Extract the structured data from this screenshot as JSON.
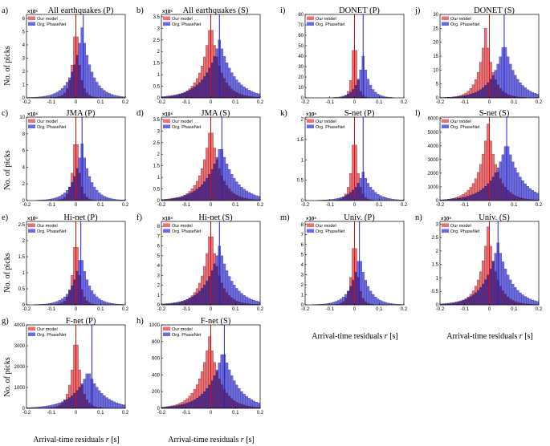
{
  "chart_data": {
    "type": "bar",
    "figure_ylabel": "No. of picks",
    "figure_xlabel": {
      "text": "Arrival-time residuals ",
      "var": "r",
      "unit": " [s]"
    },
    "colors": {
      "our_model": "#f26d6d",
      "org_phasenet": "#6b6be8",
      "overlap": "#5a2a86",
      "edge": "#3a2a4a",
      "vline": "#2222cc",
      "axis": "#000000"
    },
    "legend": [
      "Our model",
      "Org. PhaseNet"
    ],
    "xlim": [
      -0.2,
      0.2
    ],
    "xticks": [
      "-0.2",
      "-0.1",
      "0",
      "0.1",
      "0.2"
    ],
    "bins": 40,
    "panels": [
      {
        "id": "a",
        "label": "a)",
        "title": "All earthquakes (P)",
        "multiplier": "×10⁵",
        "yticks": [
          0,
          1,
          2,
          3,
          4,
          5,
          6
        ],
        "ymax": 6.3,
        "our_mean": 0.0,
        "our_sd": 0.016,
        "our_peak": 6.3,
        "org_mean": 0.025,
        "org_sd": 0.04,
        "org_peak": 5.3,
        "vline": 0.03
      },
      {
        "id": "b",
        "label": "b)",
        "title": "All earthquakes (S)",
        "multiplier": "×10⁵",
        "yticks": [
          0,
          0.5,
          1,
          1.5,
          2,
          2.5,
          3,
          3.5
        ],
        "ymax": 3.6,
        "our_mean": 0.0,
        "our_sd": 0.04,
        "our_peak": 3.3,
        "org_mean": 0.035,
        "org_sd": 0.06,
        "org_peak": 2.5,
        "vline": 0.035
      },
      {
        "id": "i",
        "label": "i)",
        "title": "DONET (P)",
        "multiplier": "",
        "yticks": [
          0,
          10,
          20,
          30,
          40,
          50,
          60,
          70,
          80
        ],
        "ymax": 80,
        "our_mean": 0.0,
        "our_sd": 0.01,
        "our_peak": 75,
        "org_mean": 0.035,
        "org_sd": 0.025,
        "org_peak": 40,
        "vline": 0.035
      },
      {
        "id": "j",
        "label": "j)",
        "title": "DONET (S)",
        "multiplier": "",
        "yticks": [
          0,
          5,
          10,
          15,
          20,
          25,
          30
        ],
        "ymax": 30,
        "our_mean": -0.015,
        "our_sd": 0.03,
        "our_peak": 25,
        "org_mean": 0.06,
        "org_sd": 0.05,
        "org_peak": 20,
        "vline": 0.06
      },
      {
        "id": "c",
        "label": "c)",
        "title": "JMA (P)",
        "multiplier": "×10⁴",
        "yticks": [
          0,
          2,
          4,
          6,
          8,
          10
        ],
        "ymax": 10,
        "our_mean": 0.0,
        "our_sd": 0.014,
        "our_peak": 9.6,
        "org_mean": 0.025,
        "org_sd": 0.035,
        "org_peak": 6.8,
        "vline": 0.025
      },
      {
        "id": "d",
        "label": "d)",
        "title": "JMA (S)",
        "multiplier": "×10⁴",
        "yticks": [
          0,
          0.5,
          1,
          1.5,
          2,
          2.5,
          3,
          3.5
        ],
        "ymax": 3.6,
        "our_mean": 0.0,
        "our_sd": 0.04,
        "our_peak": 3.3,
        "org_mean": 0.04,
        "org_sd": 0.06,
        "org_peak": 2.4,
        "vline": 0.045
      },
      {
        "id": "k",
        "label": "k)",
        "title": "S-net (P)",
        "multiplier": "×10⁴",
        "yticks": [
          0,
          0.5,
          1,
          1.5,
          2
        ],
        "ymax": 2.05,
        "our_mean": 0.0,
        "our_sd": 0.014,
        "our_peak": 1.95,
        "org_mean": 0.035,
        "org_sd": 0.04,
        "org_peak": 0.7,
        "vline": 0.035
      },
      {
        "id": "l",
        "label": "l)",
        "title": "S-net (S)",
        "multiplier": "",
        "yticks": [
          0,
          1000,
          2000,
          3000,
          4000,
          5000,
          6000
        ],
        "ymax": 6100,
        "our_mean": -0.005,
        "our_sd": 0.04,
        "our_peak": 5600,
        "org_mean": 0.07,
        "org_sd": 0.06,
        "org_peak": 4300,
        "vline": 0.07
      },
      {
        "id": "e",
        "label": "e)",
        "title": "Hi-net (P)",
        "multiplier": "×10⁵",
        "yticks": [
          0,
          0.5,
          1,
          1.5,
          2,
          2.5
        ],
        "ymax": 2.6,
        "our_mean": 0.0,
        "our_sd": 0.015,
        "our_peak": 2.5,
        "org_mean": 0.02,
        "org_sd": 0.035,
        "org_peak": 1.6,
        "vline": 0.02
      },
      {
        "id": "f",
        "label": "f)",
        "title": "Hi-net (S)",
        "multiplier": "×10⁴",
        "yticks": [
          0,
          1,
          2,
          3,
          4,
          5,
          6,
          7,
          8
        ],
        "ymax": 8.5,
        "our_mean": 0.0,
        "our_sd": 0.035,
        "our_peak": 8.0,
        "org_mean": 0.035,
        "org_sd": 0.055,
        "org_peak": 6.0,
        "vline": 0.035
      },
      {
        "id": "m",
        "label": "m)",
        "title": "Univ. (P)",
        "multiplier": "×10⁴",
        "yticks": [
          0,
          1,
          2,
          3,
          4,
          5,
          6,
          7,
          8
        ],
        "ymax": 8.3,
        "our_mean": 0.0,
        "our_sd": 0.014,
        "our_peak": 8.0,
        "org_mean": 0.02,
        "org_sd": 0.035,
        "org_peak": 5.0,
        "vline": 0.02
      },
      {
        "id": "n",
        "label": "n)",
        "title": "Univ. (S)",
        "multiplier": "×10⁴",
        "yticks": [
          0,
          0.5,
          1,
          1.5,
          2,
          2.5,
          3
        ],
        "ymax": 3.1,
        "our_mean": -0.005,
        "our_sd": 0.035,
        "our_peak": 2.9,
        "org_mean": 0.035,
        "org_sd": 0.055,
        "org_peak": 2.3,
        "vline": 0.035
      },
      {
        "id": "g",
        "label": "g)",
        "title": "F-net (P)",
        "multiplier": "",
        "yticks": [
          0,
          1000,
          2000,
          3000,
          4000
        ],
        "ymax": 4000,
        "our_mean": 0.0,
        "our_sd": 0.02,
        "our_peak": 3900,
        "org_mean": 0.05,
        "org_sd": 0.06,
        "org_peak": 1800,
        "vline": 0.065
      },
      {
        "id": "h",
        "label": "h)",
        "title": "F-net (S)",
        "multiplier": "",
        "yticks": [
          0,
          200,
          400,
          600,
          800,
          1000
        ],
        "ymax": 1000,
        "our_mean": -0.005,
        "our_sd": 0.045,
        "our_peak": 860,
        "org_mean": 0.05,
        "org_sd": 0.06,
        "org_peak": 700,
        "vline": 0.055
      }
    ]
  }
}
